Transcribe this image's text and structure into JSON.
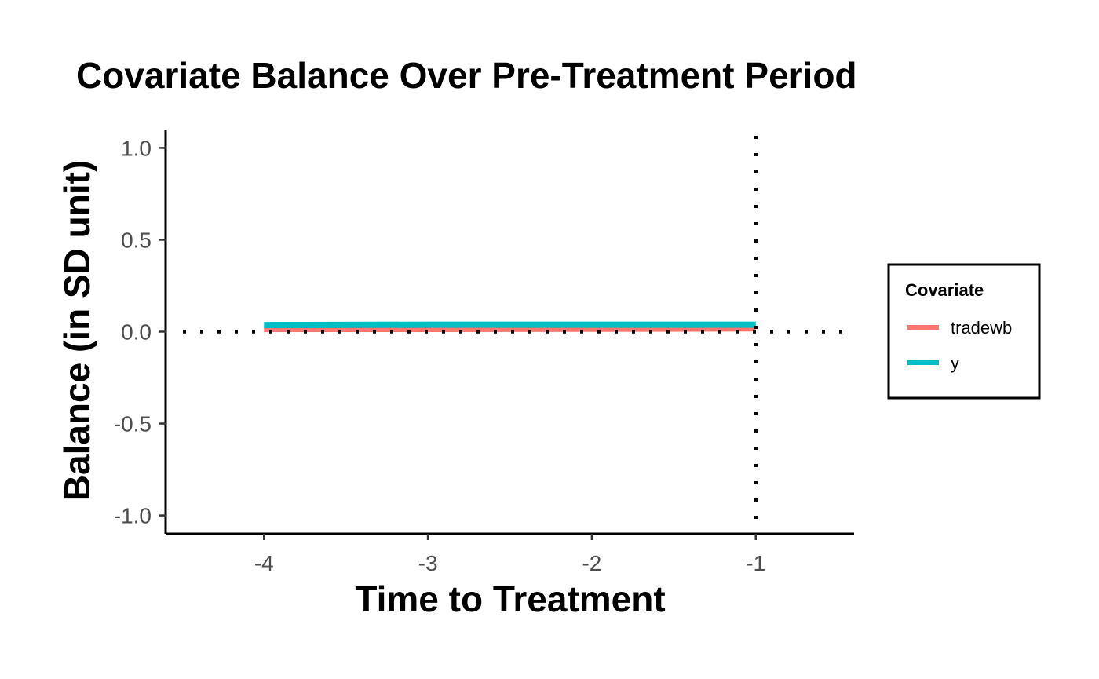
{
  "chart_data": {
    "type": "line",
    "title": "Covariate Balance Over Pre-Treatment Period",
    "xlabel": "Time to Treatment",
    "ylabel": "Balance (in SD unit)",
    "xlim": [
      -4.6,
      -0.4
    ],
    "ylim": [
      -1.1,
      1.1
    ],
    "x_ticks": [
      -4,
      -3,
      -2,
      -1
    ],
    "x_tick_labels": [
      "-4",
      "-3",
      "-2",
      "-1"
    ],
    "y_ticks": [
      -1.0,
      -0.5,
      0.0,
      0.5,
      1.0
    ],
    "y_tick_labels": [
      "-1.0",
      "-0.5",
      "0.0",
      "0.5",
      "1.0"
    ],
    "grid": false,
    "reference_lines": {
      "hline_y": 0,
      "vline_x": -1,
      "style": "dotted"
    },
    "legend": {
      "title": "Covariate",
      "placement": "right"
    },
    "series": [
      {
        "name": "tradewb",
        "color": "#F8766D",
        "x": [
          -4,
          -3,
          -2,
          -1
        ],
        "values": [
          0.015,
          0.015,
          0.016,
          0.018
        ]
      },
      {
        "name": "y",
        "color": "#00BFC4",
        "x": [
          -4,
          -3,
          -2,
          -1
        ],
        "values": [
          0.036,
          0.038,
          0.038,
          0.038
        ]
      }
    ]
  }
}
